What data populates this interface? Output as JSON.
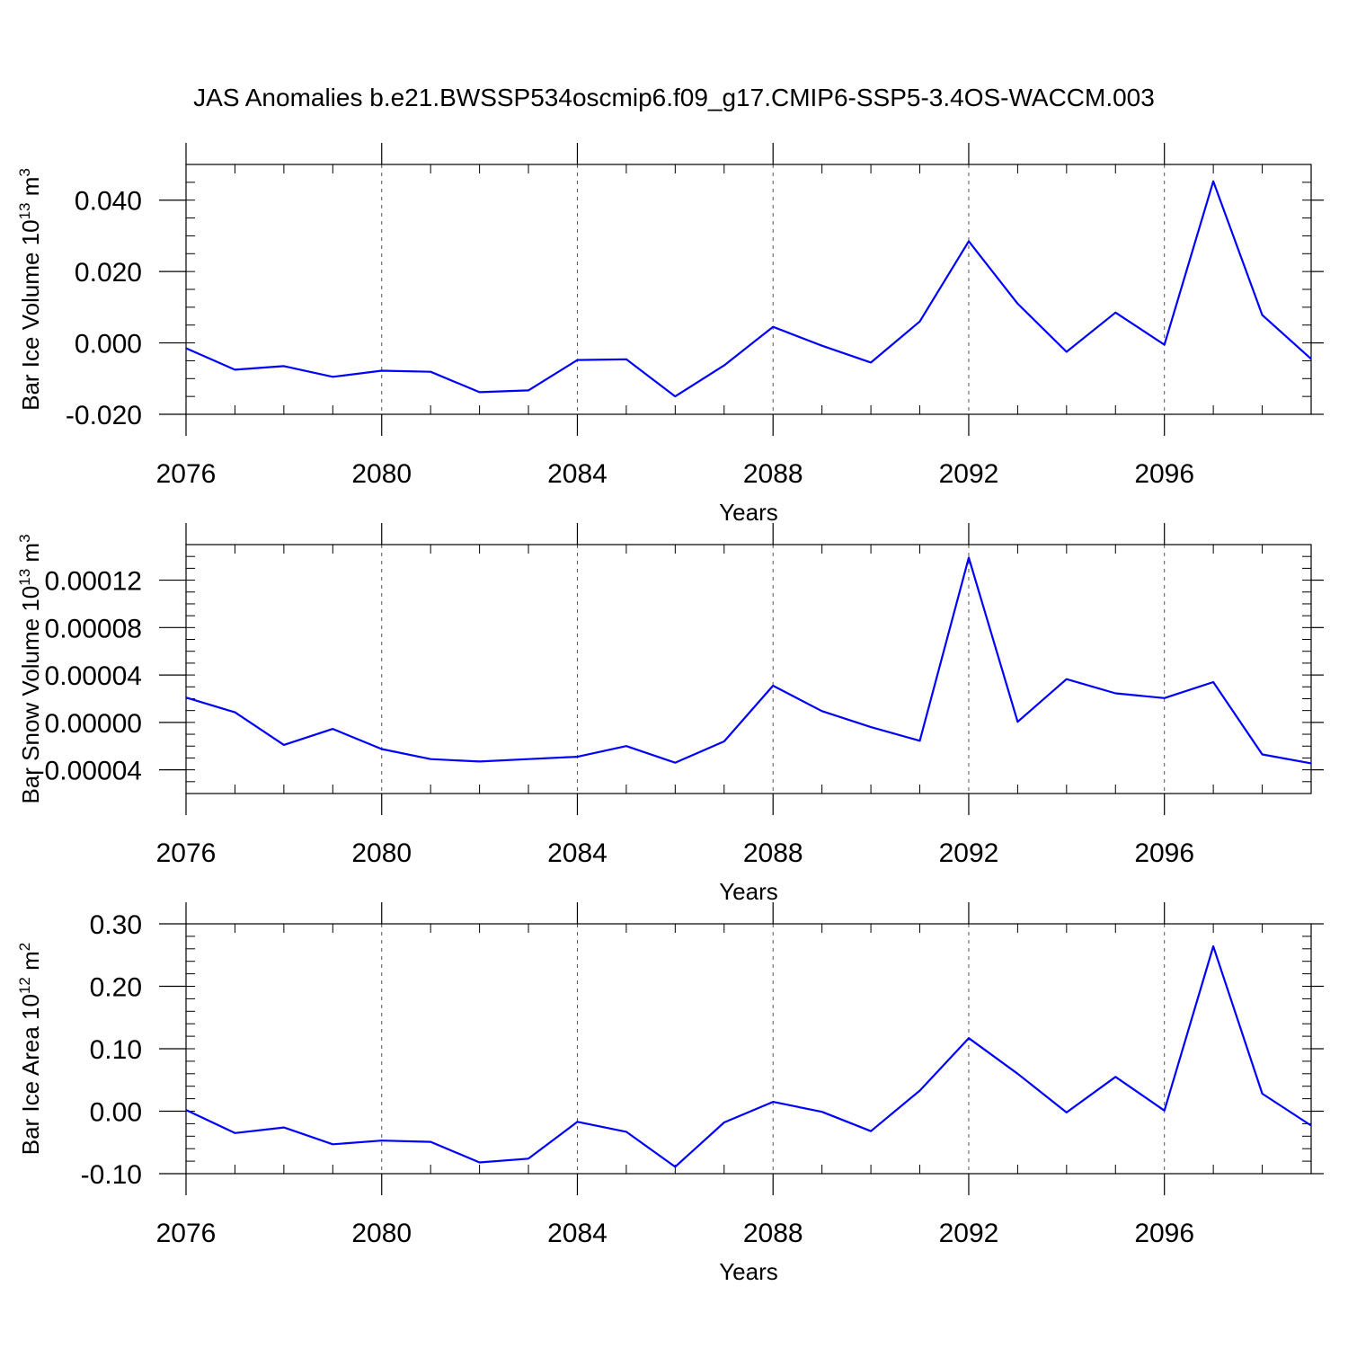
{
  "figure_title": "JAS Anomalies b.e21.BWSSP534oscmip6.f09_g17.CMIP6-SSP5-3.4OS-WACCM.003",
  "colors": {
    "line": "#0000ff",
    "axis": "#000000",
    "grid": "#555555"
  },
  "chart_data": [
    {
      "type": "line",
      "ylabel": "Bar Ice Volume 10",
      "ylabel_exp": "13",
      "ylabel_unit": " m",
      "ylabel_unit_exp": "3",
      "xlabel": "Years",
      "xlim": [
        2076,
        2099
      ],
      "ylim": [
        -0.02,
        0.05
      ],
      "x_ticks": [
        2076,
        2080,
        2084,
        2088,
        2092,
        2096
      ],
      "x_tick_labels": [
        "2076",
        "2080",
        "2084",
        "2088",
        "2092",
        "2096"
      ],
      "y_ticks": [
        -0.02,
        0.0,
        0.02,
        0.04
      ],
      "y_tick_labels": [
        "-0.020",
        "0.000",
        "0.020",
        "0.040"
      ],
      "y_minor": 0.005,
      "grid_x": [
        2080,
        2084,
        2088,
        2092,
        2096
      ],
      "x": [
        2076,
        2077,
        2078,
        2079,
        2080,
        2081,
        2082,
        2083,
        2084,
        2085,
        2086,
        2087,
        2088,
        2089,
        2090,
        2091,
        2092,
        2093,
        2094,
        2095,
        2096,
        2097,
        2098,
        2099
      ],
      "values": [
        -0.0015,
        -0.0075,
        -0.0065,
        -0.0095,
        -0.0078,
        -0.0081,
        -0.0138,
        -0.0133,
        -0.0048,
        -0.0046,
        -0.015,
        -0.0063,
        0.0045,
        -0.0008,
        -0.0055,
        0.006,
        0.0285,
        0.011,
        -0.0025,
        0.0085,
        -0.0005,
        0.0453,
        0.0078,
        -0.0045
      ]
    },
    {
      "type": "line",
      "ylabel": "Bar Snow Volume 10",
      "ylabel_exp": "13",
      "ylabel_unit": " m",
      "ylabel_unit_exp": "3",
      "xlabel": "Years",
      "xlim": [
        2076,
        2099
      ],
      "ylim": [
        -6e-05,
        0.00015
      ],
      "x_ticks": [
        2076,
        2080,
        2084,
        2088,
        2092,
        2096
      ],
      "x_tick_labels": [
        "2076",
        "2080",
        "2084",
        "2088",
        "2092",
        "2096"
      ],
      "y_ticks": [
        -4e-05,
        0.0,
        4e-05,
        8e-05,
        0.00012
      ],
      "y_tick_labels": [
        "-0.00004",
        "0.00000",
        "0.00004",
        "0.00008",
        "0.00012"
      ],
      "y_minor": 1e-05,
      "grid_x": [
        2080,
        2084,
        2088,
        2092,
        2096
      ],
      "x": [
        2076,
        2077,
        2078,
        2079,
        2080,
        2081,
        2082,
        2083,
        2084,
        2085,
        2086,
        2087,
        2088,
        2089,
        2090,
        2091,
        2092,
        2093,
        2094,
        2095,
        2096,
        2097,
        2098,
        2099
      ],
      "values": [
        2.1e-05,
        8.5e-06,
        -1.9e-05,
        -5.5e-06,
        -2.25e-05,
        -3.1e-05,
        -3.3e-05,
        -3.1e-05,
        -2.9e-05,
        -2e-05,
        -3.4e-05,
        -1.6e-05,
        3.1e-05,
        9.5e-06,
        -4e-06,
        -1.55e-05,
        0.000139,
        5e-07,
        3.65e-05,
        2.45e-05,
        2.05e-05,
        3.4e-05,
        -2.7e-05,
        -3.45e-05
      ]
    },
    {
      "type": "line",
      "ylabel": "Bar Ice Area 10",
      "ylabel_exp": "12",
      "ylabel_unit": " m",
      "ylabel_unit_exp": "2",
      "xlabel": "Years",
      "xlim": [
        2076,
        2099
      ],
      "ylim": [
        -0.1,
        0.3
      ],
      "x_ticks": [
        2076,
        2080,
        2084,
        2088,
        2092,
        2096
      ],
      "x_tick_labels": [
        "2076",
        "2080",
        "2084",
        "2088",
        "2092",
        "2096"
      ],
      "y_ticks": [
        -0.1,
        0.0,
        0.1,
        0.2,
        0.3
      ],
      "y_tick_labels": [
        "-0.10",
        "0.00",
        "0.10",
        "0.20",
        "0.30"
      ],
      "y_minor": 0.02,
      "grid_x": [
        2080,
        2084,
        2088,
        2092,
        2096
      ],
      "x": [
        2076,
        2077,
        2078,
        2079,
        2080,
        2081,
        2082,
        2083,
        2084,
        2085,
        2086,
        2087,
        2088,
        2089,
        2090,
        2091,
        2092,
        2093,
        2094,
        2095,
        2096,
        2097,
        2098,
        2099
      ],
      "values": [
        0.002,
        -0.035,
        -0.026,
        -0.053,
        -0.047,
        -0.049,
        -0.082,
        -0.076,
        -0.017,
        -0.033,
        -0.089,
        -0.018,
        0.015,
        -0.001,
        -0.032,
        0.033,
        0.117,
        0.06,
        -0.002,
        0.055,
        0.001,
        0.264,
        0.028,
        -0.023
      ]
    }
  ]
}
